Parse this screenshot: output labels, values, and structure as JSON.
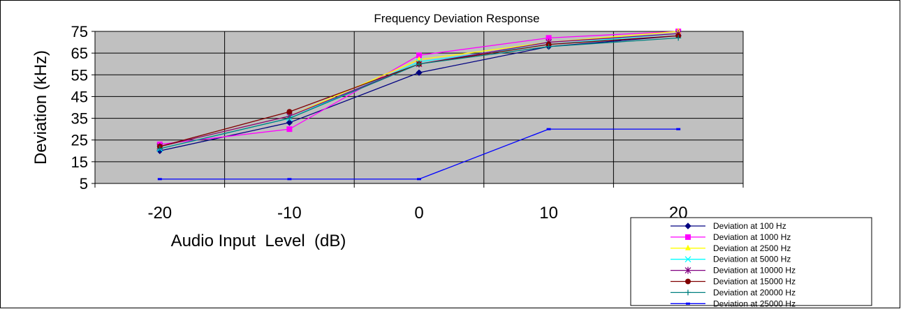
{
  "chart_data": {
    "type": "line",
    "title": "Frequency Deviation Response",
    "xlabel": "Audio Input  Level  (dB)",
    "ylabel": "Deviation (kHz)",
    "x": [
      -20,
      -10,
      0,
      10,
      20
    ],
    "x_tick_labels": [
      "-20",
      "-10",
      "0",
      "10",
      "20"
    ],
    "y_ticks": [
      5,
      15,
      25,
      35,
      45,
      55,
      65,
      75
    ],
    "y_tick_labels": [
      "5",
      "15",
      "25",
      "35",
      "45",
      "55",
      "65",
      "75"
    ],
    "ylim": [
      5,
      75
    ],
    "grid": true,
    "plot_background": "#c0c0c0",
    "legend_position": "bottom-right",
    "series": [
      {
        "name": "Deviation at 100 Hz",
        "color": "#000080",
        "marker": "diamond",
        "values": [
          20,
          33,
          56,
          68,
          73
        ]
      },
      {
        "name": "Deviation at 1000 Hz",
        "color": "#ff00ff",
        "marker": "square",
        "values": [
          23,
          30,
          64,
          72,
          75
        ]
      },
      {
        "name": "Deviation at 2500 Hz",
        "color": "#ffff00",
        "marker": "triangle",
        "values": [
          22,
          36,
          62,
          70,
          75
        ]
      },
      {
        "name": "Deviation at 5000 Hz",
        "color": "#00ffff",
        "marker": "x",
        "values": [
          21,
          35,
          61,
          69,
          74
        ]
      },
      {
        "name": "Deviation at 10000 Hz",
        "color": "#800080",
        "marker": "star",
        "values": [
          22,
          36,
          60,
          70,
          74
        ]
      },
      {
        "name": "Deviation at 15000 Hz",
        "color": "#800000",
        "marker": "circle",
        "values": [
          22,
          38,
          60,
          69,
          73
        ]
      },
      {
        "name": "Deviation at 20000 Hz",
        "color": "#008080",
        "marker": "plus",
        "values": [
          21,
          35,
          60,
          68,
          72
        ]
      },
      {
        "name": "Deviation at 25000 Hz",
        "color": "#0000ff",
        "marker": "dash",
        "values": [
          7,
          7,
          7,
          30,
          30
        ]
      }
    ]
  }
}
